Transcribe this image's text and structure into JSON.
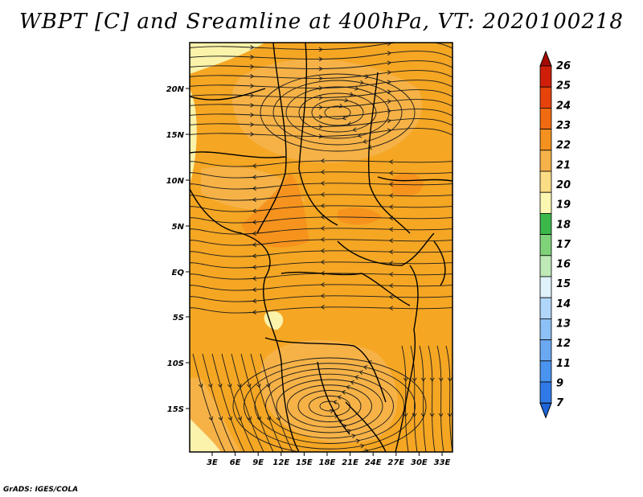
{
  "title": "WBPT [C] and Sreamline at 400hPa, VT: 2020100218",
  "credit": "GrADS: IGES/COLA",
  "map": {
    "lat_labels": [
      "20N",
      "15N",
      "10N",
      "5N",
      "EQ",
      "5S",
      "10S",
      "15S"
    ],
    "lon_labels": [
      "3E",
      "6E",
      "9E",
      "12E",
      "15E",
      "18E",
      "21E",
      "24E",
      "27E",
      "30E",
      "33E"
    ],
    "base_color": "#f5a623",
    "regions": [
      {
        "name": "northwest-pale-band",
        "level": 19
      },
      {
        "name": "north-central-warm",
        "level": 21
      },
      {
        "name": "cameroon-max",
        "level": 22
      },
      {
        "name": "sudan-max",
        "level": 22
      },
      {
        "name": "southern-cyclone-warm",
        "level": 21
      },
      {
        "name": "southwest-pale-band",
        "level": 19
      }
    ]
  },
  "colorbar": {
    "levels": [
      "7",
      "9",
      "11",
      "12",
      "13",
      "14",
      "15",
      "16",
      "17",
      "18",
      "19",
      "20",
      "21",
      "22",
      "23",
      "24",
      "25",
      "26"
    ],
    "colors": [
      "#1e64d8",
      "#2f7ae6",
      "#4a93ee",
      "#6aa8f2",
      "#8cc0f6",
      "#b0d7fa",
      "#dff2fb",
      "#bfeab8",
      "#7fd27a",
      "#3cb84a",
      "#fbf7b2",
      "#fbdd85",
      "#f6b24a",
      "#f5911e",
      "#f06a12",
      "#e5420c",
      "#cf1f0b",
      "#a50a05"
    ]
  }
}
